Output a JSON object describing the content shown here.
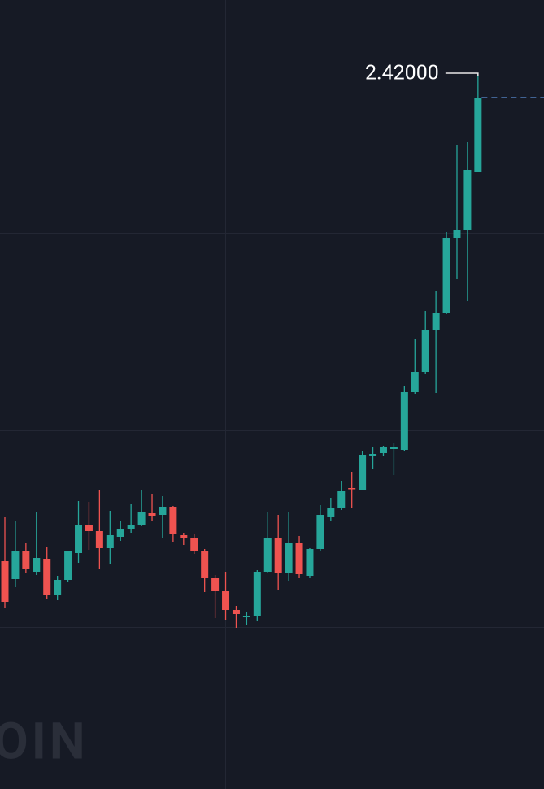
{
  "chart_data": {
    "type": "candlestick",
    "watermark": "OIN",
    "ylim": [
      0.66,
      2.6
    ],
    "up_color": "#26a69a",
    "down_color": "#ef5350",
    "open": [
      1.22,
      1.176,
      1.246,
      1.194,
      1.226,
      1.138,
      1.174,
      1.24,
      1.308,
      1.294,
      1.252,
      1.28,
      1.3,
      1.31,
      1.338,
      1.334,
      1.354,
      1.284,
      1.278,
      1.246,
      1.18,
      1.148,
      1.1,
      1.082,
      1.086,
      1.194,
      1.276,
      1.19,
      1.264,
      1.184,
      1.25,
      1.33,
      1.35,
      1.4,
      1.396,
      1.48,
      1.486,
      1.496,
      1.494,
      1.636,
      1.686,
      1.788,
      1.83,
      2.014,
      2.034,
      2.178
    ],
    "high": [
      1.33,
      1.32,
      1.266,
      1.34,
      1.256,
      1.184,
      1.246,
      1.368,
      1.366,
      1.394,
      1.344,
      1.32,
      1.36,
      1.394,
      1.386,
      1.38,
      1.356,
      1.29,
      1.288,
      1.25,
      1.186,
      1.194,
      1.11,
      1.096,
      1.198,
      1.342,
      1.334,
      1.34,
      1.282,
      1.252,
      1.358,
      1.376,
      1.418,
      1.44,
      1.49,
      1.502,
      1.504,
      1.51,
      1.652,
      1.766,
      1.836,
      1.884,
      2.03,
      2.244,
      2.25,
      2.42
    ],
    "low": [
      1.104,
      1.156,
      1.19,
      1.186,
      1.126,
      1.124,
      1.168,
      1.216,
      1.248,
      1.2,
      1.214,
      1.27,
      1.29,
      1.306,
      1.32,
      1.276,
      1.268,
      1.26,
      1.238,
      1.144,
      1.08,
      1.076,
      1.056,
      1.064,
      1.074,
      1.192,
      1.15,
      1.172,
      1.18,
      1.178,
      1.244,
      1.318,
      1.346,
      1.35,
      1.394,
      1.446,
      1.48,
      1.432,
      1.49,
      1.63,
      1.68,
      1.634,
      1.828,
      1.914,
      1.86,
      2.176
    ],
    "close": [
      1.12,
      1.246,
      1.2,
      1.228,
      1.136,
      1.174,
      1.244,
      1.308,
      1.294,
      1.252,
      1.284,
      1.3,
      1.31,
      1.34,
      1.332,
      1.354,
      1.288,
      1.278,
      1.246,
      1.18,
      1.148,
      1.1,
      1.09,
      1.086,
      1.194,
      1.276,
      1.19,
      1.264,
      1.188,
      1.25,
      1.334,
      1.352,
      1.392,
      1.398,
      1.482,
      1.484,
      1.5,
      1.5,
      1.636,
      1.686,
      1.788,
      1.83,
      2.014,
      2.034,
      2.182,
      2.36
    ],
    "high_marker": {
      "value": 2.42,
      "label": "2.42000"
    }
  }
}
